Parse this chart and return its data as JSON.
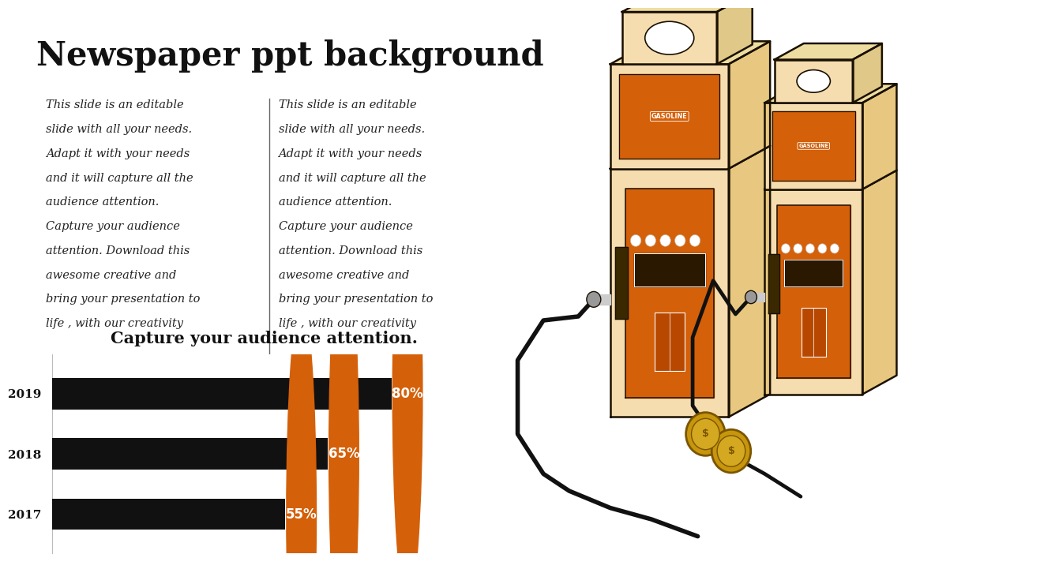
{
  "title": "Newspaper ppt background",
  "col1_lines": [
    "This slide is an editable",
    "slide with all your needs.",
    "Adapt it with your needs",
    "and it will capture all the",
    "audience attention.",
    "Capture your audience",
    "attention. Download this",
    "awesome creative and",
    "bring your presentation to",
    "life , with our creativity"
  ],
  "col2_lines": [
    "This slide is an editable",
    "slide with all your needs.",
    "Adapt it with your needs",
    "and it will capture all the",
    "audience attention.",
    "Capture your audience",
    "attention. Download this",
    "awesome creative and",
    "bring your presentation to",
    "life , with our creativity"
  ],
  "chart_title": "Capture your audience attention.",
  "categories": [
    "2019",
    "2018",
    "2017"
  ],
  "values": [
    80,
    65,
    55
  ],
  "bar_color": "#111111",
  "circle_color": "#d4600a",
  "circle_text_color": "#ffffff",
  "bg_color": "#ffffff",
  "title_color": "#111111",
  "body_color": "#222222",
  "chart_title_color": "#111111",
  "divider_color": "#666666",
  "pump_light": "#f5ddb0",
  "pump_orange": "#d4600a",
  "pump_outline": "#1a1000",
  "coin_gold": "#c8960c",
  "coin_inner": "#d4a820",
  "coin_edge": "#7a5500"
}
